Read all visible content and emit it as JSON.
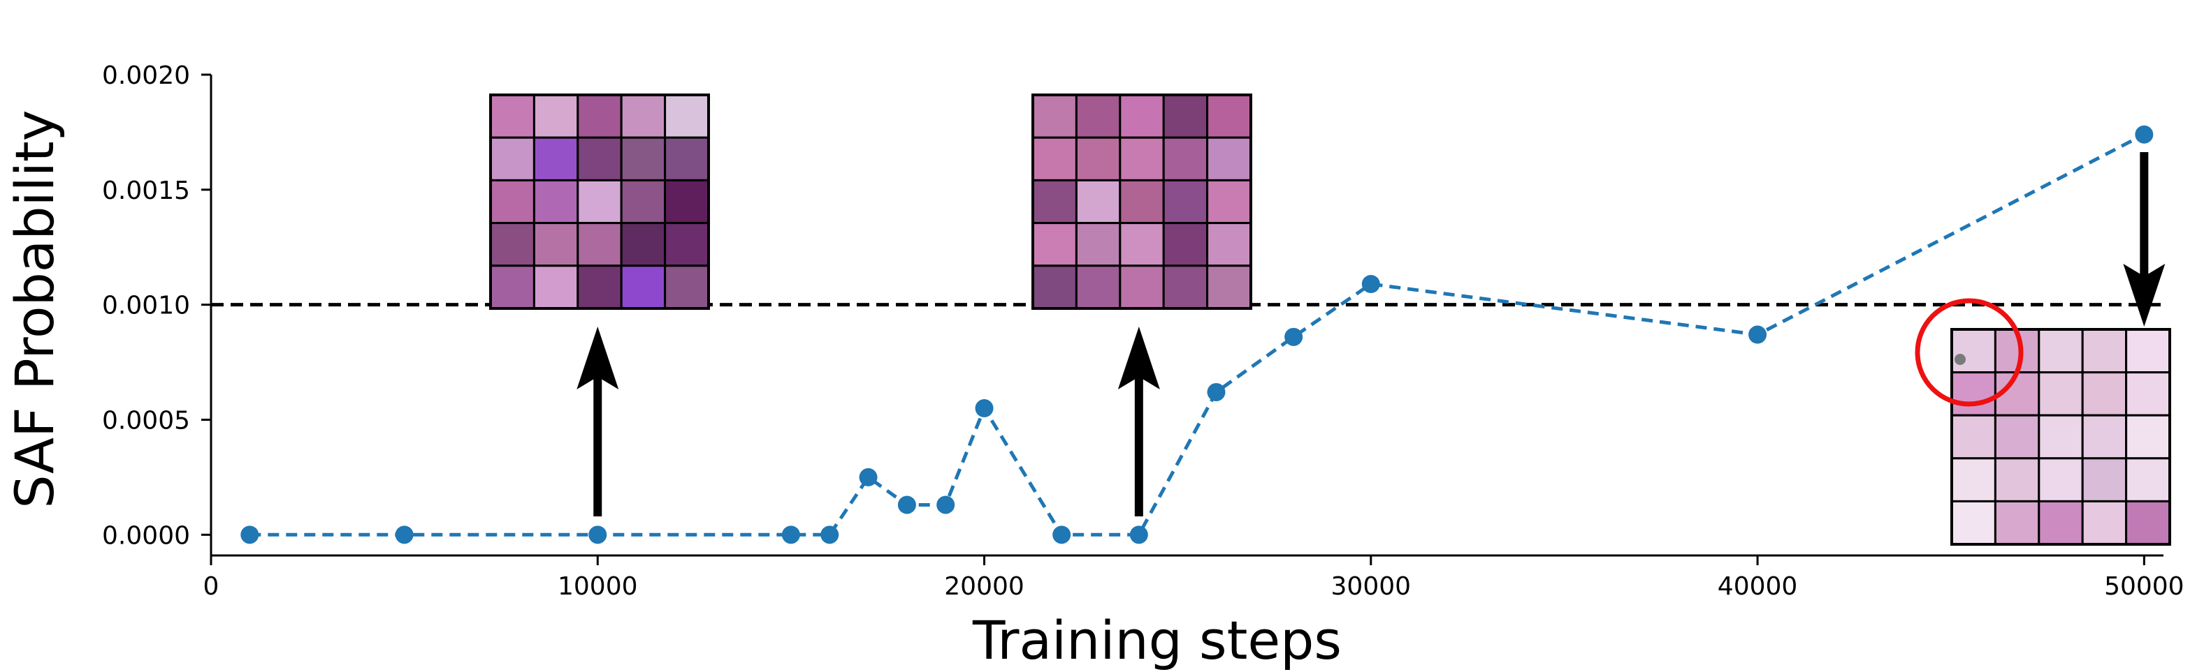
{
  "chart_data": {
    "type": "line",
    "title": "",
    "xlabel": "Training steps",
    "ylabel": "SAF Probability",
    "xlim": [
      0,
      50500
    ],
    "ylim": [
      -9e-05,
      0.002
    ],
    "xticks": [
      0,
      10000,
      20000,
      30000,
      40000,
      50000
    ],
    "xtick_labels": [
      "0",
      "10000",
      "20000",
      "30000",
      "40000",
      "50000"
    ],
    "yticks": [
      0.0,
      0.0005,
      0.001,
      0.0015,
      0.002
    ],
    "ytick_labels": [
      "0.0000",
      "0.0005",
      "0.0010",
      "0.0015",
      "0.0020"
    ],
    "grid": false,
    "threshold": 0.001,
    "series": [
      {
        "color": "#1f77b4",
        "linestyle": "dashed",
        "marker": "circle",
        "x": [
          1000,
          5000,
          10000,
          15000,
          16000,
          17000,
          18000,
          19000,
          20000,
          22000,
          24000,
          26000,
          28000,
          30000,
          40000,
          50000
        ],
        "y": [
          0.0,
          0.0,
          0.0,
          0.0,
          0.0,
          0.00025,
          0.00013,
          0.00013,
          0.00055,
          0.0,
          0.0,
          0.00062,
          0.00086,
          0.00109,
          0.00087,
          0.00174
        ]
      }
    ],
    "insets": [
      {
        "arrow_x": 10000,
        "colors": [
          [
            "#c77bb5",
            "#d6a8cf",
            "#a45795",
            "#c792c0",
            "#d8c2dc"
          ],
          [
            "#c895c8",
            "#9552c8",
            "#7e4480",
            "#865886",
            "#7e4f84"
          ],
          [
            "#b76aa6",
            "#ae68b4",
            "#d4a8d4",
            "#8c5488",
            "#5e1f5c"
          ],
          [
            "#8a4e82",
            "#b573a5",
            "#ac6a9e",
            "#5e2c60",
            "#6b2d6b"
          ],
          [
            "#a360a0",
            "#d29ccf",
            "#70356f",
            "#8e48ce",
            "#8a5488"
          ]
        ]
      },
      {
        "arrow_x": 24000,
        "colors": [
          [
            "#bd7aaa",
            "#a45a90",
            "#c775b2",
            "#7c3f76",
            "#b7619c"
          ],
          [
            "#c678ac",
            "#ba6ea0",
            "#c77bb0",
            "#a65f98",
            "#be8ac0"
          ],
          [
            "#8a4e84",
            "#d3a6d0",
            "#b06494",
            "#8a4e8c",
            "#c87cb2"
          ],
          [
            "#ca7eb4",
            "#bc82b2",
            "#cd90c0",
            "#7c3d78",
            "#c98ec0"
          ],
          [
            "#7e4a80",
            "#a05e98",
            "#ba72a8",
            "#8e5088",
            "#b37aa8"
          ]
        ]
      },
      {
        "arrow_x": 50000,
        "colors": [
          [
            "#e6cce2",
            "#d6a6cc",
            "#e8d0e4",
            "#e4c8de",
            "#f0dcee"
          ],
          [
            "#d496c8",
            "#d8a4cc",
            "#e6cae0",
            "#e2c0d8",
            "#eed6ea"
          ],
          [
            "#e4c6de",
            "#d8aed2",
            "#ead6e8",
            "#e6cce2",
            "#f2e2f0"
          ],
          [
            "#f0e0ee",
            "#e2c4dc",
            "#ecd8ea",
            "#d8bcd8",
            "#eedcec"
          ],
          [
            "#f2e4f0",
            "#d8a8ce",
            "#cc8cc2",
            "#e6c8e0",
            "#c07ab4"
          ]
        ]
      }
    ]
  }
}
